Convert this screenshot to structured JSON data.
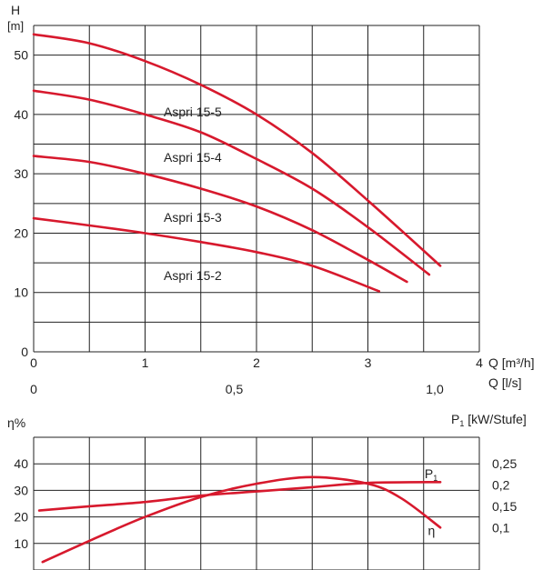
{
  "colors": {
    "curve": "#d7192d",
    "grid": "#222222",
    "text": "#222222"
  },
  "chart_data": [
    {
      "type": "line",
      "title": "",
      "ylabel": "H",
      "ylabel_unit": "[m]",
      "xlabel": "Q [m³/h]",
      "xlabel2": "Q [l/s]",
      "xlim": [
        0,
        4
      ],
      "ylim": [
        0,
        55
      ],
      "x_ticks": [
        "0",
        "1",
        "2",
        "3",
        "4"
      ],
      "x2_ticks": [
        {
          "value": 0,
          "label": "0"
        },
        {
          "value": 1.8,
          "label": "0,5"
        },
        {
          "value": 3.6,
          "label": "1,0"
        }
      ],
      "y_ticks": [
        "0",
        "10",
        "20",
        "30",
        "40",
        "50"
      ],
      "grid": true,
      "series": [
        {
          "name": "Aspri 15-5",
          "x": [
            0,
            0.5,
            1,
            1.5,
            2,
            2.5,
            3,
            3.65
          ],
          "y": [
            53.5,
            52,
            49,
            45,
            40,
            33.5,
            25.5,
            14.5
          ]
        },
        {
          "name": "Aspri 15-4",
          "x": [
            0,
            0.5,
            1,
            1.5,
            2,
            2.5,
            3,
            3.55
          ],
          "y": [
            44,
            42.5,
            40,
            37,
            32.5,
            27.5,
            21,
            13
          ]
        },
        {
          "name": "Aspri 15-3",
          "x": [
            0,
            0.5,
            1,
            1.5,
            2,
            2.5,
            3,
            3.35
          ],
          "y": [
            33,
            32,
            30,
            27.5,
            24.5,
            20.5,
            15.5,
            11.8
          ]
        },
        {
          "name": "Aspri 15-2",
          "x": [
            0,
            0.5,
            1,
            1.5,
            2,
            2.5,
            3.1
          ],
          "y": [
            22.5,
            21.3,
            20,
            18.5,
            16.8,
            14.5,
            10.2
          ]
        }
      ]
    },
    {
      "type": "line",
      "title": "",
      "ylabel": "η%",
      "ylabel2": "P1 [kW/Stufe]",
      "xlim": [
        0,
        4
      ],
      "ylim": [
        0,
        50
      ],
      "y_ticks": [
        "10",
        "20",
        "30",
        "40"
      ],
      "y2lim": [
        0,
        0.3125
      ],
      "y2_ticks": [
        "0,1",
        "0,15",
        "0,2",
        "0,25"
      ],
      "grid": true,
      "series": [
        {
          "name": "η",
          "axis": "left",
          "x": [
            0.08,
            0.5,
            1,
            1.5,
            2,
            2.5,
            3,
            3.3,
            3.65
          ],
          "y": [
            3,
            11,
            20,
            27.5,
            32.5,
            35,
            32.5,
            27,
            16
          ]
        },
        {
          "name": "P1",
          "axis": "right",
          "x": [
            0.05,
            0.5,
            1,
            1.5,
            2,
            2.5,
            3,
            3.65
          ],
          "y": [
            0.14,
            0.15,
            0.16,
            0.175,
            0.185,
            0.195,
            0.205,
            0.207
          ]
        }
      ],
      "annotations": [
        {
          "text": "P",
          "sub": "1",
          "x": 3.55,
          "y": 35
        },
        {
          "text": "η",
          "x": 3.58,
          "y": 14.5
        }
      ]
    }
  ]
}
